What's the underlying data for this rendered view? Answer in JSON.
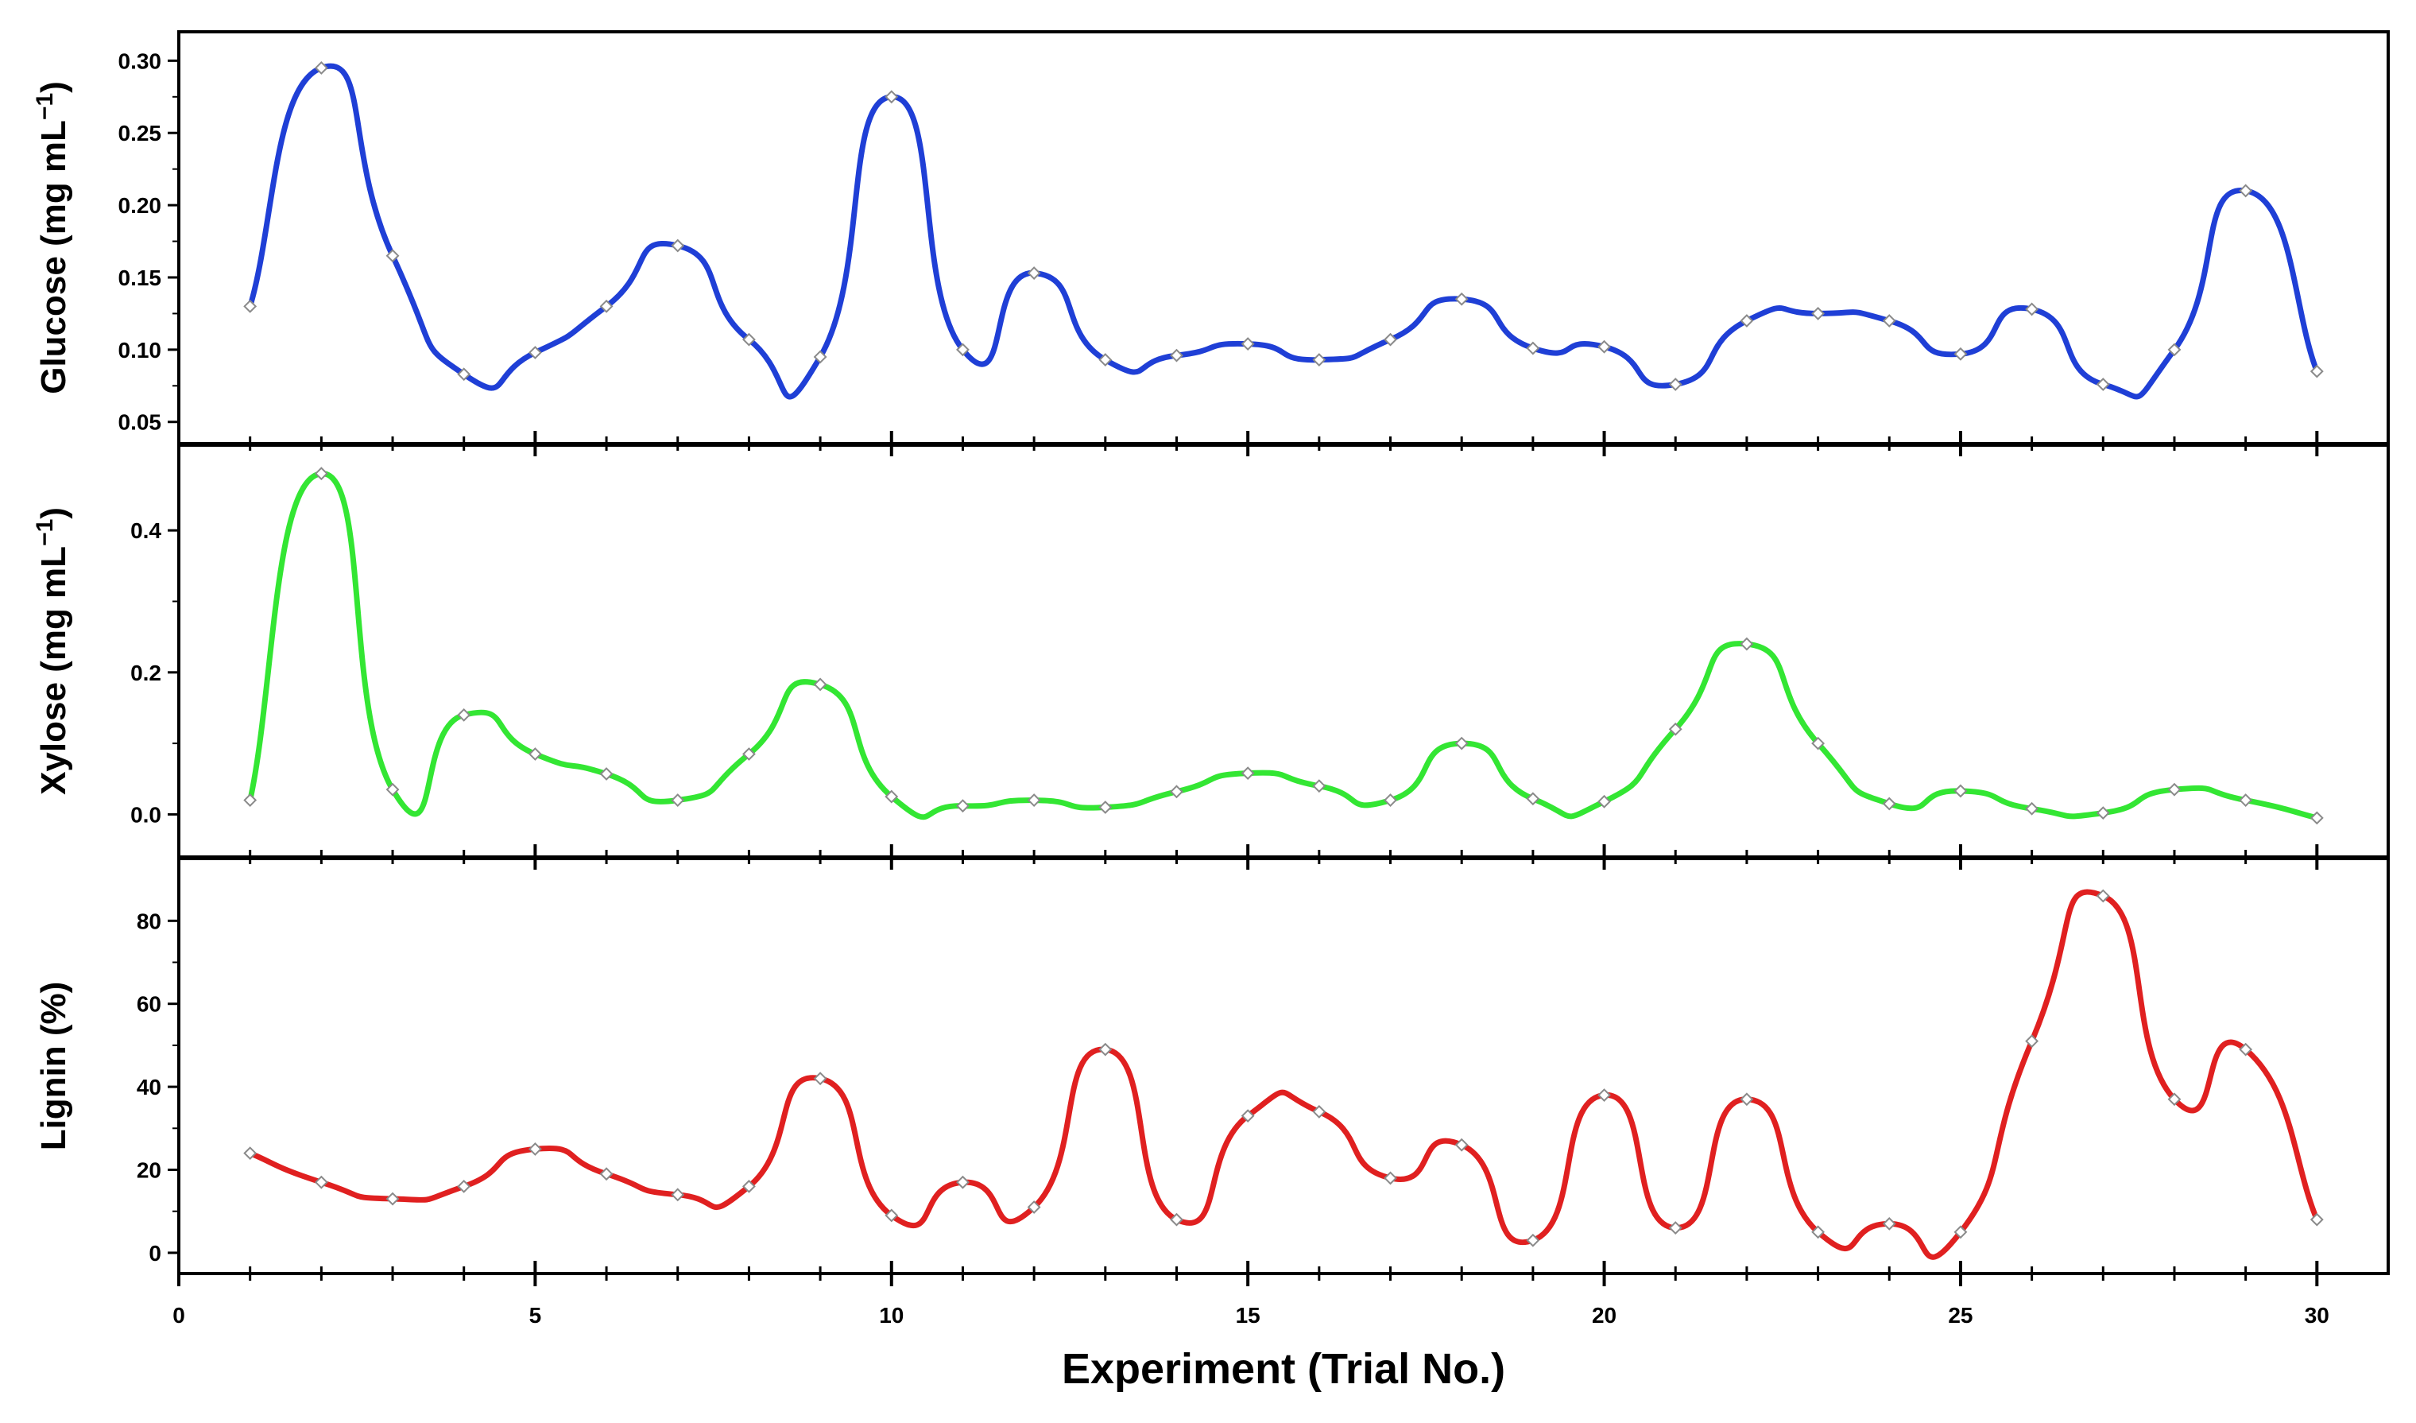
{
  "chart_data": {
    "type": "line",
    "xlabel": "Experiment (Trial No.)",
    "xlim": [
      0,
      31
    ],
    "xticks": [
      "0",
      "5",
      "10",
      "15",
      "20",
      "25",
      "30"
    ],
    "x": [
      1,
      2,
      3,
      4,
      5,
      6,
      7,
      8,
      9,
      10,
      11,
      12,
      13,
      14,
      15,
      16,
      17,
      18,
      19,
      20,
      21,
      22,
      23,
      24,
      25,
      26,
      27,
      28,
      29,
      30
    ],
    "panels": [
      {
        "name": "glucose",
        "ylabel_main": "Glucose (mg mL",
        "ylabel_sup": "−1",
        "ylabel_close": ")",
        "color": "#1f3fd6",
        "ylim": [
          0.035,
          0.32
        ],
        "yticks": [
          "0.05",
          "0.10",
          "0.15",
          "0.20",
          "0.25",
          "0.30"
        ],
        "values": [
          0.13,
          0.295,
          0.165,
          0.083,
          0.098,
          0.13,
          0.172,
          0.107,
          0.095,
          0.275,
          0.1,
          0.153,
          0.093,
          0.096,
          0.104,
          0.093,
          0.107,
          0.135,
          0.101,
          0.102,
          0.076,
          0.12,
          0.125,
          0.12,
          0.097,
          0.128,
          0.076,
          0.1,
          0.21,
          0.085
        ]
      },
      {
        "name": "xylose",
        "ylabel_main": "Xylose (mg mL",
        "ylabel_sup": "−1",
        "ylabel_close": ")",
        "color": "#33e633",
        "ylim": [
          -0.06,
          0.52
        ],
        "yticks": [
          "0.0",
          "0.2",
          "0.4"
        ],
        "values": [
          0.02,
          0.48,
          0.035,
          0.14,
          0.085,
          0.057,
          0.02,
          0.085,
          0.183,
          0.025,
          0.012,
          0.02,
          0.01,
          0.032,
          0.058,
          0.04,
          0.02,
          0.1,
          0.022,
          0.018,
          0.12,
          0.24,
          0.1,
          0.015,
          0.033,
          0.008,
          0.002,
          0.035,
          0.02,
          -0.005
        ]
      },
      {
        "name": "lignin",
        "ylabel_main": "Lignin (%)",
        "ylabel_sup": "",
        "ylabel_close": "",
        "color": "#e02020",
        "ylim": [
          -5,
          95
        ],
        "yticks": [
          "0",
          "20",
          "40",
          "60",
          "80"
        ],
        "values": [
          24,
          17,
          13,
          16,
          25,
          19,
          14,
          16,
          42,
          9,
          17,
          11,
          49,
          8,
          33,
          34,
          18,
          26,
          3,
          38,
          6,
          37,
          5,
          7,
          5,
          51,
          86,
          37,
          49,
          8
        ]
      }
    ]
  }
}
